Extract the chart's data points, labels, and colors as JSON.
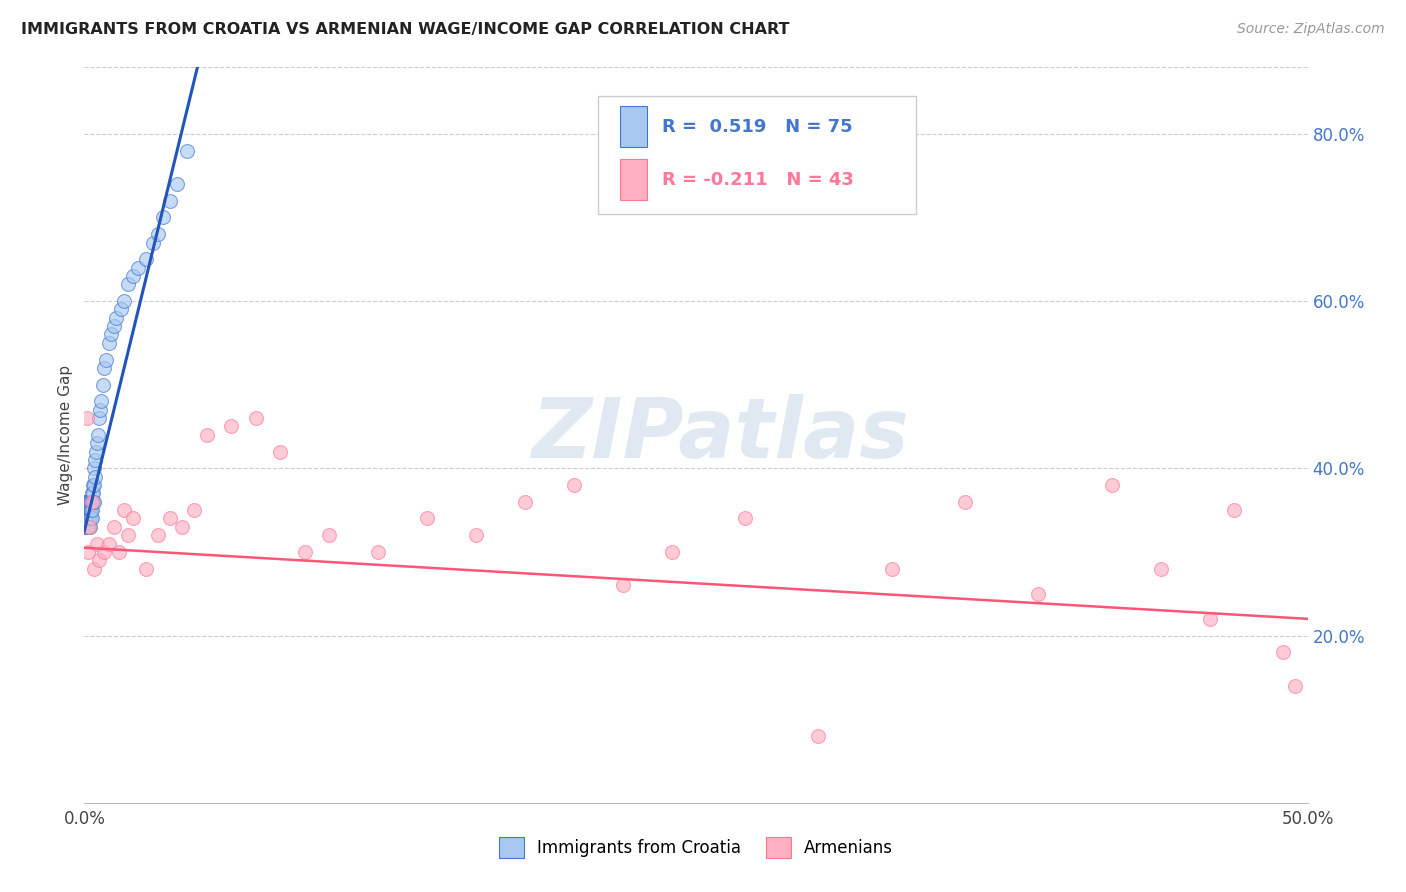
{
  "title": "IMMIGRANTS FROM CROATIA VS ARMENIAN WAGE/INCOME GAP CORRELATION CHART",
  "source": "Source: ZipAtlas.com",
  "ylabel": "Wage/Income Gap",
  "legend_blue_r": "R =  0.519",
  "legend_blue_n": "N = 75",
  "legend_pink_r": "R = -0.211",
  "legend_pink_n": "N = 43",
  "legend_label_blue": "Immigrants from Croatia",
  "legend_label_pink": "Armenians",
  "blue_color": "#A8C8F0",
  "pink_color": "#FFB0C0",
  "blue_edge_color": "#4477CC",
  "pink_edge_color": "#FF7799",
  "blue_line_color": "#2255BB",
  "pink_line_color": "#FF5577",
  "watermark_color": "#C8D8E8",
  "bg_color": "#FFFFFF",
  "grid_color": "#CCCCCC",
  "blue_scatter_x": [
    0.0002,
    0.0003,
    0.0004,
    0.0005,
    0.0006,
    0.0007,
    0.0008,
    0.0008,
    0.0009,
    0.001,
    0.001,
    0.0011,
    0.0012,
    0.0012,
    0.0013,
    0.0013,
    0.0014,
    0.0015,
    0.0015,
    0.0016,
    0.0016,
    0.0017,
    0.0018,
    0.0018,
    0.0019,
    0.002,
    0.002,
    0.0021,
    0.0022,
    0.0022,
    0.0023,
    0.0024,
    0.0024,
    0.0025,
    0.0026,
    0.0027,
    0.0028,
    0.0029,
    0.003,
    0.003,
    0.0032,
    0.0033,
    0.0034,
    0.0035,
    0.0037,
    0.0038,
    0.004,
    0.004,
    0.0042,
    0.0045,
    0.0048,
    0.005,
    0.0055,
    0.006,
    0.0065,
    0.007,
    0.0075,
    0.008,
    0.009,
    0.01,
    0.011,
    0.012,
    0.013,
    0.015,
    0.016,
    0.018,
    0.02,
    0.022,
    0.025,
    0.028,
    0.03,
    0.032,
    0.035,
    0.038,
    0.042
  ],
  "blue_scatter_y": [
    0.34,
    0.36,
    0.33,
    0.35,
    0.34,
    0.36,
    0.35,
    0.33,
    0.36,
    0.34,
    0.33,
    0.35,
    0.36,
    0.34,
    0.35,
    0.33,
    0.36,
    0.35,
    0.34,
    0.36,
    0.33,
    0.35,
    0.34,
    0.36,
    0.35,
    0.34,
    0.33,
    0.36,
    0.35,
    0.34,
    0.35,
    0.36,
    0.34,
    0.33,
    0.35,
    0.36,
    0.34,
    0.35,
    0.36,
    0.34,
    0.37,
    0.35,
    0.38,
    0.36,
    0.37,
    0.36,
    0.38,
    0.4,
    0.39,
    0.41,
    0.42,
    0.43,
    0.44,
    0.46,
    0.47,
    0.48,
    0.5,
    0.52,
    0.53,
    0.55,
    0.56,
    0.57,
    0.58,
    0.59,
    0.6,
    0.62,
    0.63,
    0.64,
    0.65,
    0.67,
    0.68,
    0.7,
    0.72,
    0.74,
    0.78
  ],
  "pink_scatter_x": [
    0.001,
    0.0015,
    0.002,
    0.003,
    0.004,
    0.005,
    0.006,
    0.008,
    0.01,
    0.012,
    0.014,
    0.016,
    0.018,
    0.02,
    0.025,
    0.03,
    0.035,
    0.04,
    0.045,
    0.05,
    0.06,
    0.07,
    0.08,
    0.09,
    0.1,
    0.12,
    0.14,
    0.16,
    0.18,
    0.2,
    0.22,
    0.24,
    0.27,
    0.3,
    0.33,
    0.36,
    0.39,
    0.42,
    0.44,
    0.46,
    0.47,
    0.49,
    0.495
  ],
  "pink_scatter_y": [
    0.46,
    0.3,
    0.33,
    0.36,
    0.28,
    0.31,
    0.29,
    0.3,
    0.31,
    0.33,
    0.3,
    0.35,
    0.32,
    0.34,
    0.28,
    0.32,
    0.34,
    0.33,
    0.35,
    0.44,
    0.45,
    0.46,
    0.42,
    0.3,
    0.32,
    0.3,
    0.34,
    0.32,
    0.36,
    0.38,
    0.26,
    0.3,
    0.34,
    0.08,
    0.28,
    0.36,
    0.25,
    0.38,
    0.28,
    0.22,
    0.35,
    0.18,
    0.14
  ],
  "xlim": [
    0.0,
    0.5
  ],
  "ylim": [
    0.0,
    0.88
  ],
  "xtick_positions": [
    0.0,
    0.5
  ],
  "xtick_labels": [
    "0.0%",
    "50.0%"
  ],
  "yticks_right": [
    0.2,
    0.4,
    0.6,
    0.8
  ],
  "ytick_labels_right": [
    "20.0%",
    "40.0%",
    "60.0%",
    "80.0%"
  ],
  "blue_trend_intercept": 0.325,
  "blue_trend_slope": 12.0,
  "pink_trend_intercept": 0.305,
  "pink_trend_slope": -0.17,
  "marker_size": 100,
  "marker_alpha": 0.65,
  "marker_lw": 0.8
}
